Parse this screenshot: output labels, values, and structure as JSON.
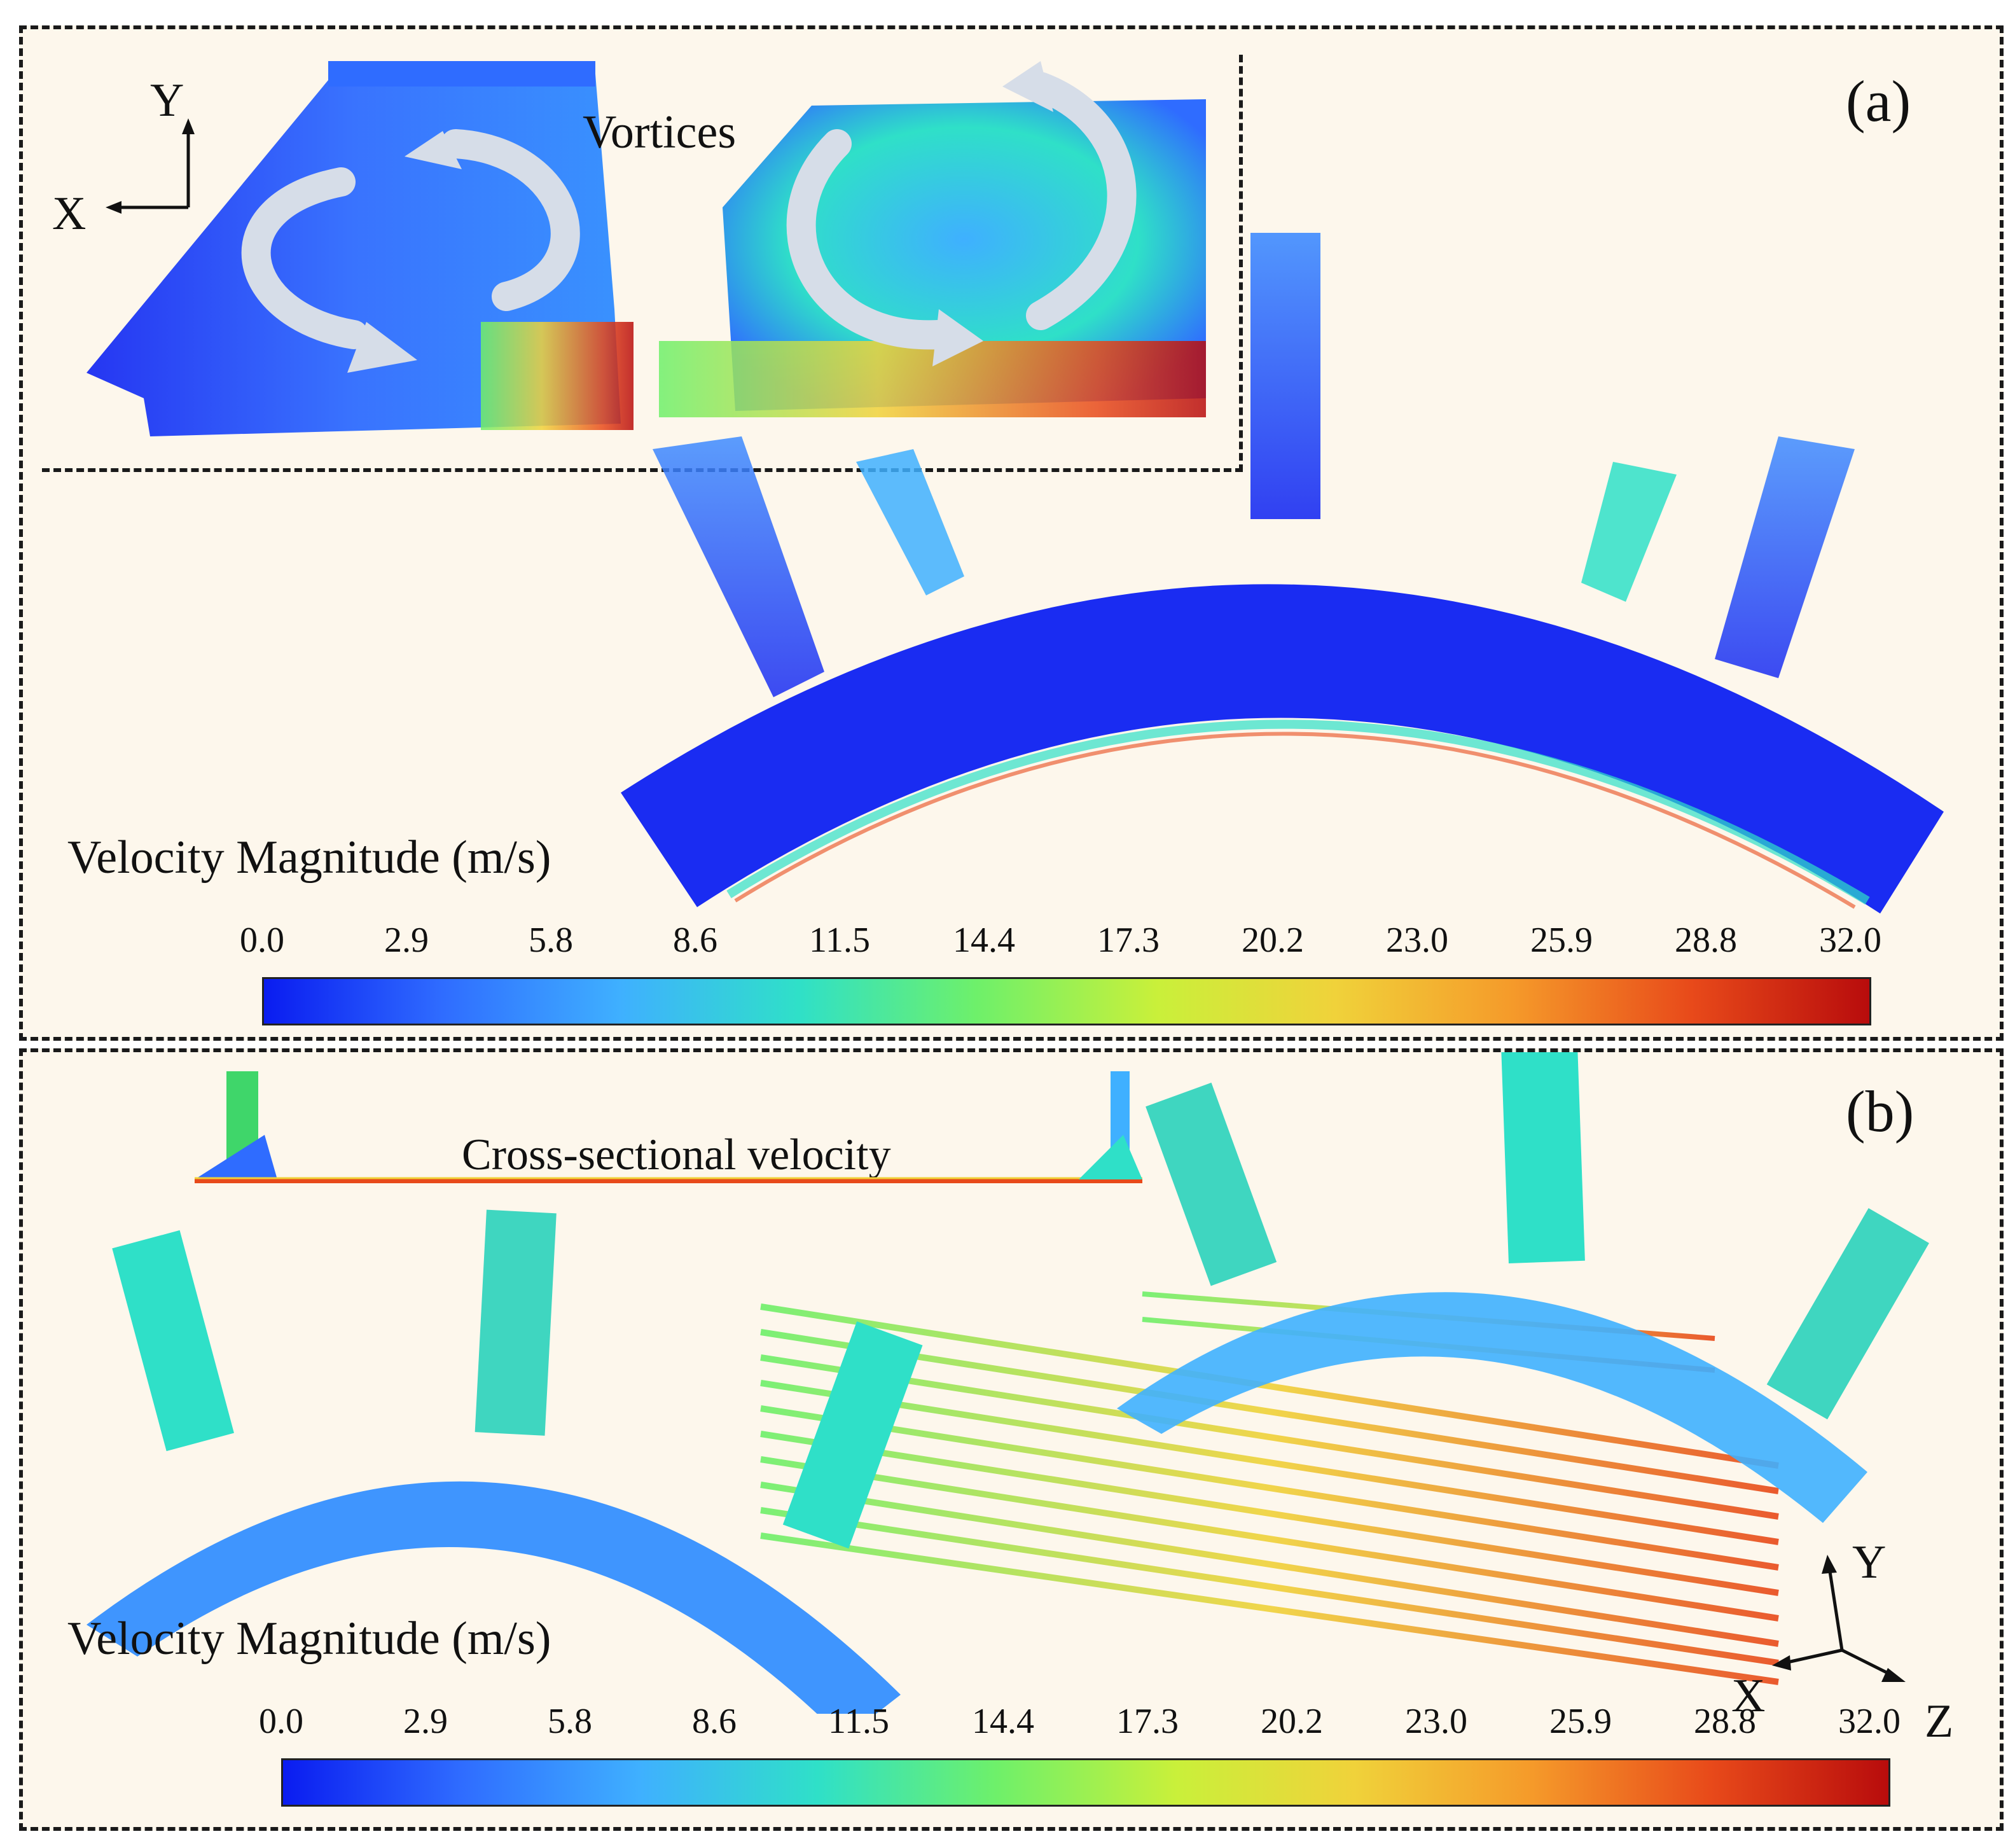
{
  "panel_a": {
    "label": "(a)",
    "vortices_label": "Vortices",
    "axis_labels": {
      "y": "Y",
      "x": "X"
    },
    "colorbar": {
      "title": "Velocity Magnitude (m/s)",
      "ticks": [
        "0.0",
        "2.9",
        "5.8",
        "8.6",
        "11.5",
        "14.4",
        "17.3",
        "20.2",
        "23.0",
        "25.9",
        "28.8",
        "32.0"
      ],
      "range": [
        0.0,
        32.0
      ]
    }
  },
  "panel_b": {
    "label": "(b)",
    "cross_section_label": "Cross-sectional velocity",
    "axis_labels": {
      "y": "Y",
      "x": "X",
      "z": "Z"
    },
    "colorbar": {
      "title": "Velocity Magnitude (m/s)",
      "ticks": [
        "0.0",
        "2.9",
        "5.8",
        "8.6",
        "11.5",
        "14.4",
        "17.3",
        "20.2",
        "23.0",
        "25.9",
        "28.8",
        "32.0"
      ],
      "range": [
        0.0,
        32.0
      ]
    }
  },
  "colormap": [
    "#0a1cf0",
    "#2f6cff",
    "#3fb0ff",
    "#2fe0c8",
    "#6ef06a",
    "#c9f03a",
    "#f0d23a",
    "#f59a2a",
    "#e84a1a",
    "#b80c0c"
  ]
}
